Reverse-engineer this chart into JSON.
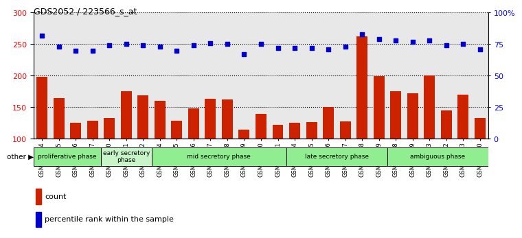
{
  "title": "GDS2052 / 223566_s_at",
  "samples": [
    "GSM109814",
    "GSM109815",
    "GSM109816",
    "GSM109817",
    "GSM109820",
    "GSM109821",
    "GSM109822",
    "GSM109824",
    "GSM109825",
    "GSM109826",
    "GSM109827",
    "GSM109828",
    "GSM109829",
    "GSM109830",
    "GSM109831",
    "GSM109834",
    "GSM109835",
    "GSM109836",
    "GSM109837",
    "GSM109838",
    "GSM109839",
    "GSM109818",
    "GSM109819",
    "GSM109823",
    "GSM109832",
    "GSM109833",
    "GSM109840"
  ],
  "counts": [
    198,
    165,
    125,
    129,
    133,
    175,
    169,
    160,
    129,
    148,
    163,
    162,
    115,
    140,
    122,
    125,
    127,
    150,
    128,
    262,
    199,
    175,
    172,
    201,
    145,
    170,
    133
  ],
  "percentile": [
    82,
    73,
    70,
    70,
    74,
    75,
    74,
    73,
    70,
    74,
    76,
    75,
    67,
    75,
    72,
    72,
    72,
    71,
    73,
    83,
    79,
    78,
    77,
    78,
    74,
    75,
    71
  ],
  "phases": [
    {
      "label": "proliferative phase",
      "start": 0,
      "end": 4,
      "color": "#90EE90"
    },
    {
      "label": "early secretory\nphase",
      "start": 4,
      "end": 7,
      "color": "#c8f5c8"
    },
    {
      "label": "mid secretory phase",
      "start": 7,
      "end": 15,
      "color": "#90EE90"
    },
    {
      "label": "late secretory phase",
      "start": 15,
      "end": 21,
      "color": "#90EE90"
    },
    {
      "label": "ambiguous phase",
      "start": 21,
      "end": 27,
      "color": "#90EE90"
    }
  ],
  "bar_color": "#cc2200",
  "dot_color": "#0000cc",
  "ylim_left": [
    100,
    300
  ],
  "ylim_right": [
    0,
    100
  ],
  "yticks_left": [
    100,
    150,
    200,
    250,
    300
  ],
  "yticks_right": [
    0,
    25,
    50,
    75,
    100
  ],
  "ytick_labels_right": [
    "0",
    "25",
    "50",
    "75",
    "100%"
  ],
  "bg_color": "#e8e8e8"
}
